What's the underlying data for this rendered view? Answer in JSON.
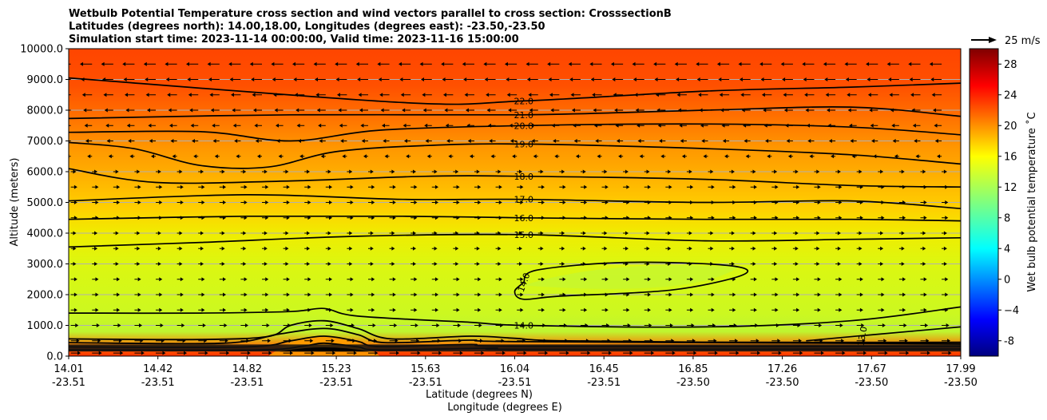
{
  "chart_data": {
    "type": "heatmap",
    "title_lines": [
      "Wetbulb Potential Temperature cross section and wind vectors parallel to cross section: CrosssectionB",
      "Latitudes (degrees north): 14.00,18.00, Longitudes (degrees east): -23.50,-23.50",
      "Simulation start time: 2023-11-14 00:00:00, Valid time: 2023-11-16 15:00:00"
    ],
    "ylabel": "Altitude (meters)",
    "xlabel_lat": "Latitude (degrees N)",
    "xlabel_lon": "Longitude (degrees E)",
    "ylim": [
      0,
      10000
    ],
    "y_ticks": [
      "0.0",
      "1000.0",
      "2000.0",
      "3000.0",
      "4000.0",
      "5000.0",
      "6000.0",
      "7000.0",
      "8000.0",
      "9000.0",
      "10000.0"
    ],
    "x_ticks": [
      {
        "lat": "14.01",
        "lon": "-23.51",
        "pos": 0.0
      },
      {
        "lat": "14.42",
        "lon": "-23.51",
        "pos": 0.1
      },
      {
        "lat": "14.82",
        "lon": "-23.51",
        "pos": 0.2
      },
      {
        "lat": "15.23",
        "lon": "-23.51",
        "pos": 0.3
      },
      {
        "lat": "15.63",
        "lon": "-23.51",
        "pos": 0.4
      },
      {
        "lat": "16.04",
        "lon": "-23.51",
        "pos": 0.5
      },
      {
        "lat": "16.45",
        "lon": "-23.51",
        "pos": 0.6
      },
      {
        "lat": "16.85",
        "lon": "-23.50",
        "pos": 0.7
      },
      {
        "lat": "17.26",
        "lon": "-23.50",
        "pos": 0.8
      },
      {
        "lat": "17.67",
        "lon": "-23.50",
        "pos": 0.9
      },
      {
        "lat": "17.99",
        "lon": "-23.50",
        "pos": 1.0
      }
    ],
    "grid": "horizontal",
    "colorbar": {
      "label": "Wet bulb potential temperature ˚C",
      "range": [
        -10,
        30
      ],
      "ticks": [
        "-8",
        "−4",
        "0",
        "4",
        "8",
        "12",
        "16",
        "20",
        "24",
        "28"
      ],
      "tick_values": [
        -8,
        -4,
        0,
        4,
        8,
        12,
        16,
        20,
        24,
        28
      ],
      "colormap": "jet"
    },
    "quiver_key": "25 m/s",
    "contour_labels": [
      {
        "text": "22.0",
        "x": 16.04,
        "y": 8300
      },
      {
        "text": "21.0",
        "x": 16.04,
        "y": 7850
      },
      {
        "text": "20.0",
        "x": 16.04,
        "y": 7500
      },
      {
        "text": "19.0",
        "x": 16.04,
        "y": 6900
      },
      {
        "text": "18.0",
        "x": 16.04,
        "y": 5850
      },
      {
        "text": "17.0",
        "x": 16.04,
        "y": 5100
      },
      {
        "text": "16.0",
        "x": 16.04,
        "y": 4500
      },
      {
        "text": "15.0",
        "x": 16.04,
        "y": 3950
      },
      {
        "text": "14.0",
        "x": 16.04,
        "y": 2400
      },
      {
        "text": "14.0",
        "x": 16.04,
        "y": 1000
      },
      {
        "text": "13.0",
        "x": 17.55,
        "y": 650
      }
    ],
    "contours": [
      {
        "level": 22,
        "points": [
          [
            14.01,
            9050
          ],
          [
            15.5,
            8250
          ],
          [
            16.04,
            8300
          ],
          [
            16.85,
            8620
          ],
          [
            17.5,
            8750
          ],
          [
            17.99,
            8880
          ]
        ]
      },
      {
        "level": 21,
        "points": [
          [
            14.01,
            7730
          ],
          [
            15.0,
            7850
          ],
          [
            16.04,
            7850
          ],
          [
            16.85,
            8000
          ],
          [
            17.5,
            8100
          ],
          [
            17.99,
            7800
          ]
        ]
      },
      {
        "level": 20,
        "points": [
          [
            14.01,
            7280
          ],
          [
            14.6,
            7300
          ],
          [
            15.0,
            7000
          ],
          [
            15.4,
            7350
          ],
          [
            16.04,
            7500
          ],
          [
            16.85,
            7550
          ],
          [
            17.5,
            7450
          ],
          [
            17.99,
            7200
          ]
        ]
      },
      {
        "level": 19,
        "points": [
          [
            14.01,
            6950
          ],
          [
            14.3,
            6750
          ],
          [
            14.6,
            6200
          ],
          [
            14.9,
            6150
          ],
          [
            15.2,
            6650
          ],
          [
            15.6,
            6850
          ],
          [
            16.04,
            6900
          ],
          [
            16.85,
            6750
          ],
          [
            17.5,
            6550
          ],
          [
            17.99,
            6250
          ]
        ]
      },
      {
        "level": 18,
        "points": [
          [
            14.01,
            6100
          ],
          [
            14.4,
            5650
          ],
          [
            15.0,
            5700
          ],
          [
            15.6,
            5850
          ],
          [
            16.04,
            5850
          ],
          [
            16.85,
            5750
          ],
          [
            17.5,
            5550
          ],
          [
            17.99,
            5500
          ]
        ]
      },
      {
        "level": 17,
        "points": [
          [
            14.01,
            5050
          ],
          [
            14.8,
            5250
          ],
          [
            15.5,
            5100
          ],
          [
            16.04,
            5100
          ],
          [
            16.85,
            5000
          ],
          [
            17.5,
            5050
          ],
          [
            17.99,
            4800
          ]
        ]
      },
      {
        "level": 16,
        "points": [
          [
            14.01,
            4450
          ],
          [
            14.8,
            4550
          ],
          [
            15.5,
            4550
          ],
          [
            16.04,
            4500
          ],
          [
            16.85,
            4450
          ],
          [
            17.5,
            4450
          ],
          [
            17.99,
            4400
          ]
        ]
      },
      {
        "level": 15,
        "points": [
          [
            14.01,
            3550
          ],
          [
            14.6,
            3700
          ],
          [
            15.3,
            3900
          ],
          [
            16.04,
            3950
          ],
          [
            16.85,
            3750
          ],
          [
            17.5,
            3800
          ],
          [
            17.99,
            3850
          ]
        ]
      },
      {
        "level": 14,
        "closed": true,
        "points": [
          [
            16.04,
            2400
          ],
          [
            16.1,
            2800
          ],
          [
            16.5,
            3050
          ],
          [
            16.95,
            2950
          ],
          [
            17.02,
            2650
          ],
          [
            16.7,
            2150
          ],
          [
            16.2,
            1950
          ],
          [
            16.04,
            1850
          ],
          [
            16.0,
            2100
          ]
        ]
      },
      {
        "level": 14,
        "points": [
          [
            14.01,
            1400
          ],
          [
            14.6,
            1400
          ],
          [
            15.0,
            1450
          ],
          [
            15.15,
            1550
          ],
          [
            15.3,
            1300
          ],
          [
            15.8,
            1100
          ],
          [
            16.04,
            1000
          ],
          [
            16.85,
            950
          ],
          [
            17.5,
            1150
          ],
          [
            17.99,
            1600
          ]
        ]
      },
      {
        "level": 13,
        "points": [
          [
            17.3,
            500
          ],
          [
            17.6,
            700
          ],
          [
            17.99,
            950
          ]
        ]
      }
    ],
    "surface_contours": [
      {
        "level": 12,
        "points": [
          [
            14.01,
            560
          ],
          [
            14.6,
            540
          ],
          [
            14.9,
            640
          ],
          [
            15.0,
            1000
          ],
          [
            15.15,
            1150
          ],
          [
            15.3,
            900
          ],
          [
            15.45,
            560
          ],
          [
            15.8,
            650
          ],
          [
            16.0,
            580
          ],
          [
            16.2,
            500
          ],
          [
            17.0,
            450
          ],
          [
            17.99,
            450
          ]
        ]
      },
      {
        "level": 11,
        "points": [
          [
            14.01,
            440
          ],
          [
            14.7,
            420
          ],
          [
            14.95,
            720
          ],
          [
            15.15,
            900
          ],
          [
            15.3,
            700
          ],
          [
            15.42,
            440
          ],
          [
            15.8,
            520
          ],
          [
            16.04,
            470
          ],
          [
            17.99,
            400
          ]
        ]
      },
      {
        "level": 10,
        "points": [
          [
            14.01,
            300
          ],
          [
            14.8,
            300
          ],
          [
            15.0,
            500
          ],
          [
            15.15,
            650
          ],
          [
            15.3,
            480
          ],
          [
            15.4,
            310
          ],
          [
            15.8,
            380
          ],
          [
            16.04,
            320
          ],
          [
            17.99,
            320
          ]
        ]
      },
      {
        "level": 9,
        "points": [
          [
            14.01,
            200
          ],
          [
            14.85,
            200
          ],
          [
            15.05,
            320
          ],
          [
            15.15,
            420
          ],
          [
            15.3,
            300
          ],
          [
            15.4,
            200
          ],
          [
            15.9,
            260
          ],
          [
            16.04,
            220
          ],
          [
            17.99,
            230
          ]
        ]
      }
    ],
    "wind_rows_m": [
      9500,
      9000,
      8500,
      8000,
      7500,
      7000,
      6500,
      6000,
      5500,
      5000,
      4500,
      4000,
      3500,
      3000,
      2500,
      2000,
      1500,
      1000,
      500,
      100
    ],
    "wind_u_ms": [
      -8,
      -7,
      -6,
      -5,
      -4,
      -3,
      -1,
      2,
      3,
      3,
      3,
      2,
      2,
      2,
      3,
      3,
      3,
      4,
      5,
      6
    ]
  }
}
